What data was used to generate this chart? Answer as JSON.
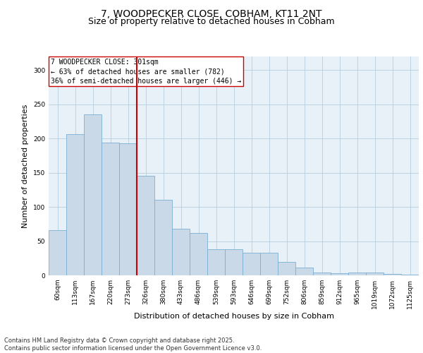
{
  "title_line1": "7, WOODPECKER CLOSE, COBHAM, KT11 2NT",
  "title_line2": "Size of property relative to detached houses in Cobham",
  "xlabel": "Distribution of detached houses by size in Cobham",
  "ylabel": "Number of detached properties",
  "categories": [
    "60sqm",
    "113sqm",
    "167sqm",
    "220sqm",
    "273sqm",
    "326sqm",
    "380sqm",
    "433sqm",
    "486sqm",
    "539sqm",
    "593sqm",
    "646sqm",
    "699sqm",
    "752sqm",
    "806sqm",
    "859sqm",
    "912sqm",
    "965sqm",
    "1019sqm",
    "1072sqm",
    "1125sqm"
  ],
  "values": [
    66,
    206,
    235,
    194,
    193,
    146,
    110,
    68,
    62,
    38,
    38,
    33,
    33,
    20,
    11,
    4,
    3,
    4,
    4,
    2,
    1
  ],
  "bar_color": "#c9d9e8",
  "bar_edge_color": "#7aafd4",
  "vline_x": 4.5,
  "vline_color": "#cc0000",
  "annotation_text": "7 WOODPECKER CLOSE: 301sqm\n← 63% of detached houses are smaller (782)\n36% of semi-detached houses are larger (446) →",
  "annotation_box_color": "white",
  "annotation_box_edge_color": "#cc0000",
  "ylim": [
    0,
    320
  ],
  "yticks": [
    0,
    50,
    100,
    150,
    200,
    250,
    300
  ],
  "grid_color": "#b8cfe0",
  "background_color": "#e8f1f8",
  "footer_text": "Contains HM Land Registry data © Crown copyright and database right 2025.\nContains public sector information licensed under the Open Government Licence v3.0.",
  "title_fontsize": 10,
  "subtitle_fontsize": 9,
  "ylabel_fontsize": 8,
  "xlabel_fontsize": 8,
  "tick_fontsize": 6.5,
  "annotation_fontsize": 7,
  "footer_fontsize": 6
}
